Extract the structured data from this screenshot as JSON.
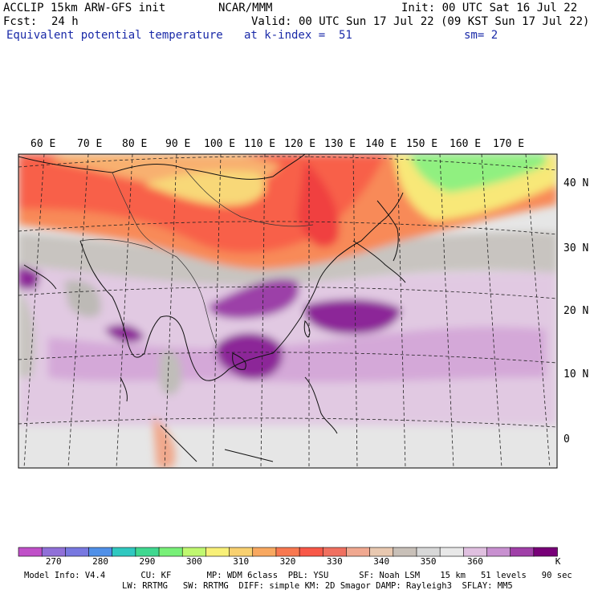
{
  "header": {
    "model": "ACCLIP 15km ARW-GFS init",
    "org": "NCAR/MMM",
    "init": "Init: 00 UTC Sat 16 Jul 22",
    "fcst_label": "Fcst:",
    "fcst_value": "24 h",
    "valid": "Valid: 00 UTC Sun 17 Jul 22 (09 KST Sun 17 Jul 22)",
    "field": "Equivalent potential temperature",
    "level": "at k-index =  51",
    "smooth": "sm= 2"
  },
  "map": {
    "lon_labels": [
      "60 E",
      "70 E",
      "80 E",
      "90 E",
      "100 E",
      "110 E",
      "120 E",
      "130 E",
      "140 E",
      "150 E",
      "160 E",
      "170 E"
    ],
    "lat_labels": [
      "40 N",
      "30 N",
      "20 N",
      "10 N",
      "0"
    ]
  },
  "colorbar": {
    "unit": "K",
    "colors": [
      "#c050c8",
      "#9070d8",
      "#7878e0",
      "#5090e8",
      "#30c8c0",
      "#40d890",
      "#78f078",
      "#c0f870",
      "#f8f078",
      "#f8d070",
      "#f8a860",
      "#f87850",
      "#f85848",
      "#f07060",
      "#f0a890",
      "#e8c8b0",
      "#c8c0b8",
      "#d8d8d8",
      "#e8e8e8",
      "#e0c0e0",
      "#c890d0",
      "#a040a8",
      "#780078"
    ],
    "labels": [
      {
        "text": "270",
        "index": 1
      },
      {
        "text": "280",
        "index": 3
      },
      {
        "text": "290",
        "index": 5
      },
      {
        "text": "300",
        "index": 7
      },
      {
        "text": "310",
        "index": 9
      },
      {
        "text": "320",
        "index": 11
      },
      {
        "text": "330",
        "index": 13
      },
      {
        "text": "340",
        "index": 15
      },
      {
        "text": "350",
        "index": 17
      },
      {
        "text": "360",
        "index": 19
      }
    ]
  },
  "footer": {
    "line1": "Model Info: V4.4       CU: KF       MP: WDM 6class  PBL: YSU      SF: Noah LSM    15 km   51 levels   90 sec",
    "line2": "LW: RRTMG   SW: RRTMG  DIFF: simple KM: 2D Smagor DAMP: Rayleigh3  SFLAY: MM5"
  }
}
